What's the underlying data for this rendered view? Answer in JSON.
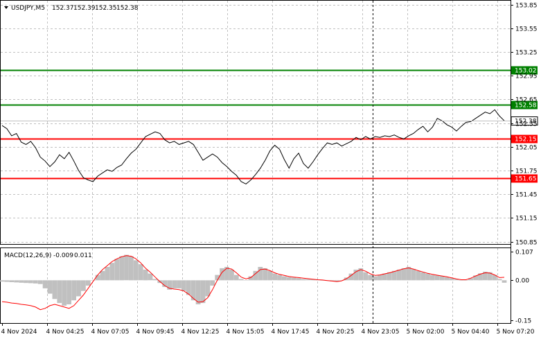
{
  "symbol_header": {
    "menu_icon": "triangle-down-icon",
    "symbol": "USDJPY,M5",
    "open": "152.37",
    "high": "152.39",
    "low": "152.35",
    "close": "152.38"
  },
  "macd_header": {
    "label": "MACD(12,26,9)",
    "main": "-0.009",
    "signal": "0.011"
  },
  "colors": {
    "background": "#ffffff",
    "grid": "#c0c0c0",
    "price_line": "#000000",
    "support_line": "#ff0000",
    "resistance_line": "#008000",
    "current_price_badge": "#ffffff",
    "macd_hist": "#c0c0c0",
    "macd_signal": "#ff0000"
  },
  "chart_data": [
    {
      "type": "line",
      "name": "price",
      "y_ticks": [
        "153.85",
        "153.55",
        "153.25",
        "152.95",
        "152.65",
        "152.35",
        "152.05",
        "151.75",
        "151.45",
        "151.15",
        "150.85"
      ],
      "ylim": [
        150.82,
        153.9
      ],
      "x_ticks": [
        "4 Nov 2024",
        "4 Nov 04:25",
        "4 Nov 07:05",
        "4 Nov 09:45",
        "4 Nov 12:25",
        "4 Nov 15:05",
        "4 Nov 17:45",
        "4 Nov 20:25",
        "4 Nov 23:05",
        "5 Nov 02:00",
        "5 Nov 04:40",
        "5 Nov 07:20"
      ],
      "levels": [
        {
          "value": "153.02",
          "kind": "resistance"
        },
        {
          "value": "152.58",
          "kind": "resistance"
        },
        {
          "value": "152.15",
          "kind": "support"
        },
        {
          "value": "151.65",
          "kind": "support"
        }
      ],
      "current_price": "152.38",
      "series_values": [
        152.32,
        152.28,
        152.19,
        152.22,
        152.11,
        152.08,
        152.12,
        152.04,
        151.92,
        151.87,
        151.8,
        151.86,
        151.95,
        151.9,
        151.98,
        151.87,
        151.75,
        151.66,
        151.63,
        151.61,
        151.68,
        151.72,
        151.76,
        151.74,
        151.79,
        151.82,
        151.9,
        151.97,
        152.02,
        152.1,
        152.18,
        152.21,
        152.24,
        152.22,
        152.14,
        152.1,
        152.12,
        152.08,
        152.1,
        152.12,
        152.08,
        151.98,
        151.88,
        151.92,
        151.96,
        151.92,
        151.85,
        151.8,
        151.74,
        151.69,
        151.61,
        151.58,
        151.63,
        151.7,
        151.78,
        151.88,
        152.0,
        152.07,
        152.02,
        151.89,
        151.78,
        151.9,
        151.97,
        151.84,
        151.78,
        151.86,
        151.95,
        152.03,
        152.1,
        152.08,
        152.1,
        152.06,
        152.09,
        152.12,
        152.17,
        152.14,
        152.18,
        152.15,
        152.18,
        152.17,
        152.19,
        152.18,
        152.2,
        152.17,
        152.15,
        152.19,
        152.22,
        152.27,
        152.31,
        152.24,
        152.3,
        152.41,
        152.38,
        152.33,
        152.3,
        152.25,
        152.31,
        152.36,
        152.37,
        152.41,
        152.45,
        152.49,
        152.47,
        152.52,
        152.44,
        152.38
      ]
    },
    {
      "type": "bar",
      "name": "MACD",
      "y_ticks": [
        "0.107",
        "0.00",
        "-0.15"
      ],
      "ylim": [
        -0.16,
        0.12
      ],
      "histogram": [
        -0.005,
        -0.006,
        -0.007,
        -0.008,
        -0.009,
        -0.01,
        -0.011,
        -0.012,
        -0.014,
        -0.03,
        -0.05,
        -0.07,
        -0.085,
        -0.095,
        -0.09,
        -0.075,
        -0.06,
        -0.04,
        -0.02,
        0.0,
        0.02,
        0.035,
        0.05,
        0.065,
        0.08,
        0.09,
        0.095,
        0.09,
        0.075,
        0.06,
        0.04,
        0.025,
        0.005,
        -0.01,
        -0.025,
        -0.035,
        -0.03,
        -0.03,
        -0.04,
        -0.055,
        -0.075,
        -0.09,
        -0.085,
        -0.06,
        -0.02,
        0.02,
        0.045,
        0.05,
        0.04,
        0.02,
        0.005,
        0.0,
        0.015,
        0.035,
        0.05,
        0.045,
        0.035,
        0.025,
        0.02,
        0.015,
        0.012,
        0.01,
        0.008,
        0.005,
        0.004,
        0.003,
        0.002,
        0.0,
        -0.002,
        -0.004,
        -0.005,
        0.0,
        0.01,
        0.025,
        0.04,
        0.045,
        0.03,
        0.02,
        0.015,
        0.02,
        0.025,
        0.03,
        0.035,
        0.04,
        0.045,
        0.05,
        0.042,
        0.035,
        0.03,
        0.025,
        0.02,
        0.018,
        0.016,
        0.012,
        0.008,
        0.004,
        0.0,
        0.0,
        0.008,
        0.018,
        0.026,
        0.032,
        0.03,
        0.02,
        0.005,
        -0.009
      ],
      "signal": [
        -0.08,
        -0.082,
        -0.085,
        -0.087,
        -0.09,
        -0.092,
        -0.095,
        -0.1,
        -0.11,
        -0.105,
        -0.095,
        -0.09,
        -0.095,
        -0.1,
        -0.105,
        -0.095,
        -0.075,
        -0.055,
        -0.03,
        -0.005,
        0.02,
        0.04,
        0.055,
        0.07,
        0.08,
        0.088,
        0.092,
        0.09,
        0.08,
        0.065,
        0.045,
        0.03,
        0.012,
        -0.005,
        -0.02,
        -0.03,
        -0.033,
        -0.035,
        -0.04,
        -0.052,
        -0.068,
        -0.082,
        -0.08,
        -0.065,
        -0.035,
        0.0,
        0.03,
        0.045,
        0.042,
        0.028,
        0.012,
        0.005,
        0.01,
        0.025,
        0.04,
        0.042,
        0.036,
        0.028,
        0.022,
        0.018,
        0.014,
        0.012,
        0.01,
        0.008,
        0.006,
        0.004,
        0.002,
        0.001,
        -0.001,
        -0.003,
        -0.005,
        -0.002,
        0.006,
        0.018,
        0.032,
        0.04,
        0.034,
        0.024,
        0.018,
        0.02,
        0.024,
        0.028,
        0.033,
        0.038,
        0.043,
        0.046,
        0.042,
        0.036,
        0.031,
        0.026,
        0.022,
        0.019,
        0.016,
        0.013,
        0.009,
        0.005,
        0.002,
        0.002,
        0.008,
        0.016,
        0.023,
        0.028,
        0.027,
        0.02,
        0.01,
        0.011
      ]
    }
  ]
}
